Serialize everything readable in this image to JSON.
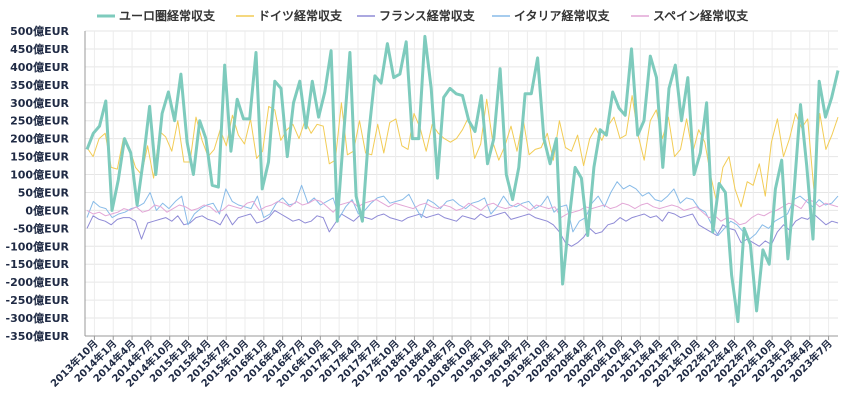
{
  "chart_data": {
    "type": "line",
    "title": "",
    "xlabel": "",
    "ylabel": "",
    "ylim": [
      -350,
      500
    ],
    "ytick_step": 50,
    "y_unit_suffix": "億EUR",
    "grid": true,
    "legend_position": "top",
    "x_labels": [
      "2013年10月",
      "2014年1月",
      "2014年4月",
      "2014年7月",
      "2014年10月",
      "2015年1月",
      "2015年4月",
      "2015年7月",
      "2015年10月",
      "2016年1月",
      "2016年4月",
      "2016年7月",
      "2016年10月",
      "2017年1月",
      "2017年4月",
      "2017年7月",
      "2017年10月",
      "2018年1月",
      "2018年4月",
      "2018年7月",
      "2018年10月",
      "2019年1月",
      "2019年4月",
      "2019年7月",
      "2019年10月",
      "2020年1月",
      "2020年4月",
      "2020年7月",
      "2020年10月",
      "2021年1月",
      "2021年4月",
      "2021年7月",
      "2021年10月",
      "2022年1月",
      "2022年4月",
      "2022年7月",
      "2022年10月",
      "2023年1月",
      "2023年4月",
      "2023年7月"
    ],
    "series": [
      {
        "name": "ユーロ圏経常収支",
        "color": "#7ecbbd",
        "width": 3,
        "values": [
          170,
          215,
          235,
          305,
          0,
          85,
          200,
          160,
          15,
          140,
          290,
          100,
          270,
          330,
          250,
          380,
          190,
          100,
          250,
          200,
          70,
          65,
          405,
          165,
          310,
          255,
          255,
          440,
          60,
          135,
          360,
          340,
          150,
          300,
          360,
          230,
          360,
          260,
          330,
          445,
          -30,
          210,
          440,
          40,
          -30,
          210,
          375,
          355,
          465,
          370,
          380,
          470,
          200,
          200,
          485,
          340,
          90,
          315,
          340,
          325,
          320,
          250,
          220,
          320,
          130,
          200,
          395,
          100,
          30,
          120,
          325,
          325,
          425,
          200,
          130,
          200,
          -205,
          -30,
          120,
          90,
          -70,
          120,
          225,
          210,
          330,
          285,
          265,
          450,
          210,
          250,
          430,
          370,
          120,
          340,
          405,
          250,
          370,
          100,
          160,
          300,
          -60,
          75,
          50,
          -180,
          -310,
          -50,
          -95,
          -280,
          -110,
          -150,
          60,
          140,
          -135,
          60,
          295,
          125,
          -80,
          360,
          260,
          315,
          390
        ]
      },
      {
        "name": "ドイツ経常収支",
        "color": "#f2cc55",
        "width": 1,
        "values": [
          175,
          150,
          200,
          215,
          120,
          115,
          200,
          175,
          120,
          100,
          180,
          90,
          220,
          205,
          165,
          250,
          135,
          135,
          260,
          195,
          150,
          170,
          225,
          180,
          265,
          210,
          185,
          255,
          145,
          165,
          290,
          280,
          195,
          225,
          240,
          200,
          250,
          215,
          240,
          235,
          130,
          140,
          300,
          155,
          165,
          250,
          160,
          155,
          240,
          160,
          245,
          255,
          180,
          170,
          270,
          230,
          165,
          240,
          215,
          200,
          190,
          200,
          225,
          260,
          145,
          185,
          310,
          190,
          140,
          180,
          235,
          165,
          255,
          155,
          170,
          175,
          215,
          140,
          250,
          175,
          165,
          210,
          125,
          200,
          230,
          195,
          235,
          260,
          200,
          210,
          320,
          210,
          140,
          250,
          280,
          200,
          260,
          150,
          170,
          255,
          160,
          225,
          190,
          95,
          20,
          120,
          150,
          60,
          10,
          80,
          70,
          130,
          40,
          190,
          255,
          150,
          200,
          270,
          230,
          255,
          60,
          270,
          170,
          210,
          260
        ]
      },
      {
        "name": "フランス経常収支",
        "color": "#8f8bd6",
        "width": 1,
        "values": [
          -50,
          -15,
          -25,
          -30,
          -40,
          -25,
          -20,
          -20,
          -30,
          -80,
          -35,
          -30,
          -25,
          -20,
          -30,
          -15,
          -40,
          -35,
          -20,
          -15,
          -25,
          -30,
          -40,
          -10,
          -40,
          -20,
          -15,
          -10,
          -35,
          -30,
          -20,
          0,
          -10,
          -20,
          -30,
          -25,
          -35,
          -30,
          -15,
          -20,
          -60,
          -35,
          -10,
          -20,
          -30,
          -15,
          -20,
          -25,
          -15,
          -10,
          -20,
          -25,
          -30,
          -20,
          -15,
          -10,
          -20,
          -15,
          -10,
          -20,
          -25,
          -30,
          -15,
          -20,
          -25,
          -10,
          -20,
          -15,
          -10,
          -5,
          -25,
          -20,
          -15,
          -10,
          -20,
          -25,
          -30,
          -40,
          -60,
          -90,
          -100,
          -90,
          -75,
          -50,
          -65,
          -60,
          -40,
          -35,
          -20,
          -30,
          -20,
          -15,
          -10,
          -20,
          -15,
          -30,
          -5,
          -10,
          -20,
          -15,
          -10,
          -40,
          -50,
          -60,
          -70,
          -40,
          -50,
          -55,
          -90,
          -80,
          -90,
          -100,
          -85,
          -95,
          -60,
          -40,
          -55,
          -30,
          -20,
          -25,
          -10,
          -25,
          -40,
          -30,
          -35
        ]
      },
      {
        "name": "イタリア経常収支",
        "color": "#88bbe8",
        "width": 1,
        "values": [
          -20,
          25,
          10,
          5,
          -20,
          -10,
          -5,
          5,
          10,
          20,
          50,
          0,
          20,
          5,
          25,
          40,
          -40,
          -10,
          5,
          15,
          20,
          -10,
          60,
          25,
          15,
          10,
          5,
          40,
          -20,
          -10,
          20,
          35,
          15,
          20,
          70,
          20,
          35,
          15,
          25,
          35,
          -20,
          10,
          30,
          -10,
          0,
          20,
          35,
          40,
          20,
          25,
          30,
          45,
          10,
          -20,
          30,
          20,
          5,
          25,
          30,
          15,
          5,
          20,
          25,
          35,
          -10,
          10,
          40,
          15,
          10,
          20,
          25,
          5,
          15,
          40,
          -5,
          10,
          15,
          -60,
          -30,
          -20,
          20,
          40,
          10,
          50,
          80,
          60,
          70,
          60,
          40,
          50,
          30,
          25,
          40,
          60,
          20,
          35,
          30,
          5,
          -5,
          -40,
          -70,
          -50,
          -30,
          -40,
          -60,
          -80,
          -65,
          -40,
          -50,
          -30,
          -20,
          -10,
          30,
          40,
          25,
          10,
          30,
          15,
          20,
          40
        ]
      },
      {
        "name": "スペイン経常収支",
        "color": "#e2a6d6",
        "width": 1,
        "values": [
          0,
          -10,
          -5,
          -15,
          -10,
          -5,
          5,
          0,
          10,
          -5,
          0,
          15,
          10,
          -5,
          5,
          15,
          10,
          0,
          5,
          15,
          10,
          -5,
          0,
          15,
          10,
          5,
          20,
          25,
          0,
          10,
          15,
          25,
          20,
          10,
          25,
          15,
          20,
          30,
          25,
          10,
          -5,
          15,
          20,
          25,
          10,
          20,
          25,
          30,
          20,
          10,
          20,
          15,
          10,
          5,
          15,
          20,
          10,
          5,
          15,
          10,
          0,
          5,
          20,
          10,
          0,
          15,
          20,
          10,
          5,
          10,
          20,
          10,
          0,
          15,
          10,
          5,
          10,
          -20,
          -10,
          -5,
          0,
          10,
          5,
          10,
          15,
          5,
          10,
          20,
          15,
          5,
          15,
          20,
          10,
          5,
          10,
          15,
          10,
          0,
          5,
          10,
          -5,
          -20,
          -15,
          -30,
          -20,
          -25,
          -40,
          -35,
          -20,
          -10,
          -15,
          -5,
          0,
          10,
          20,
          15,
          5,
          30,
          25,
          10,
          20,
          15,
          10
        ]
      }
    ]
  }
}
